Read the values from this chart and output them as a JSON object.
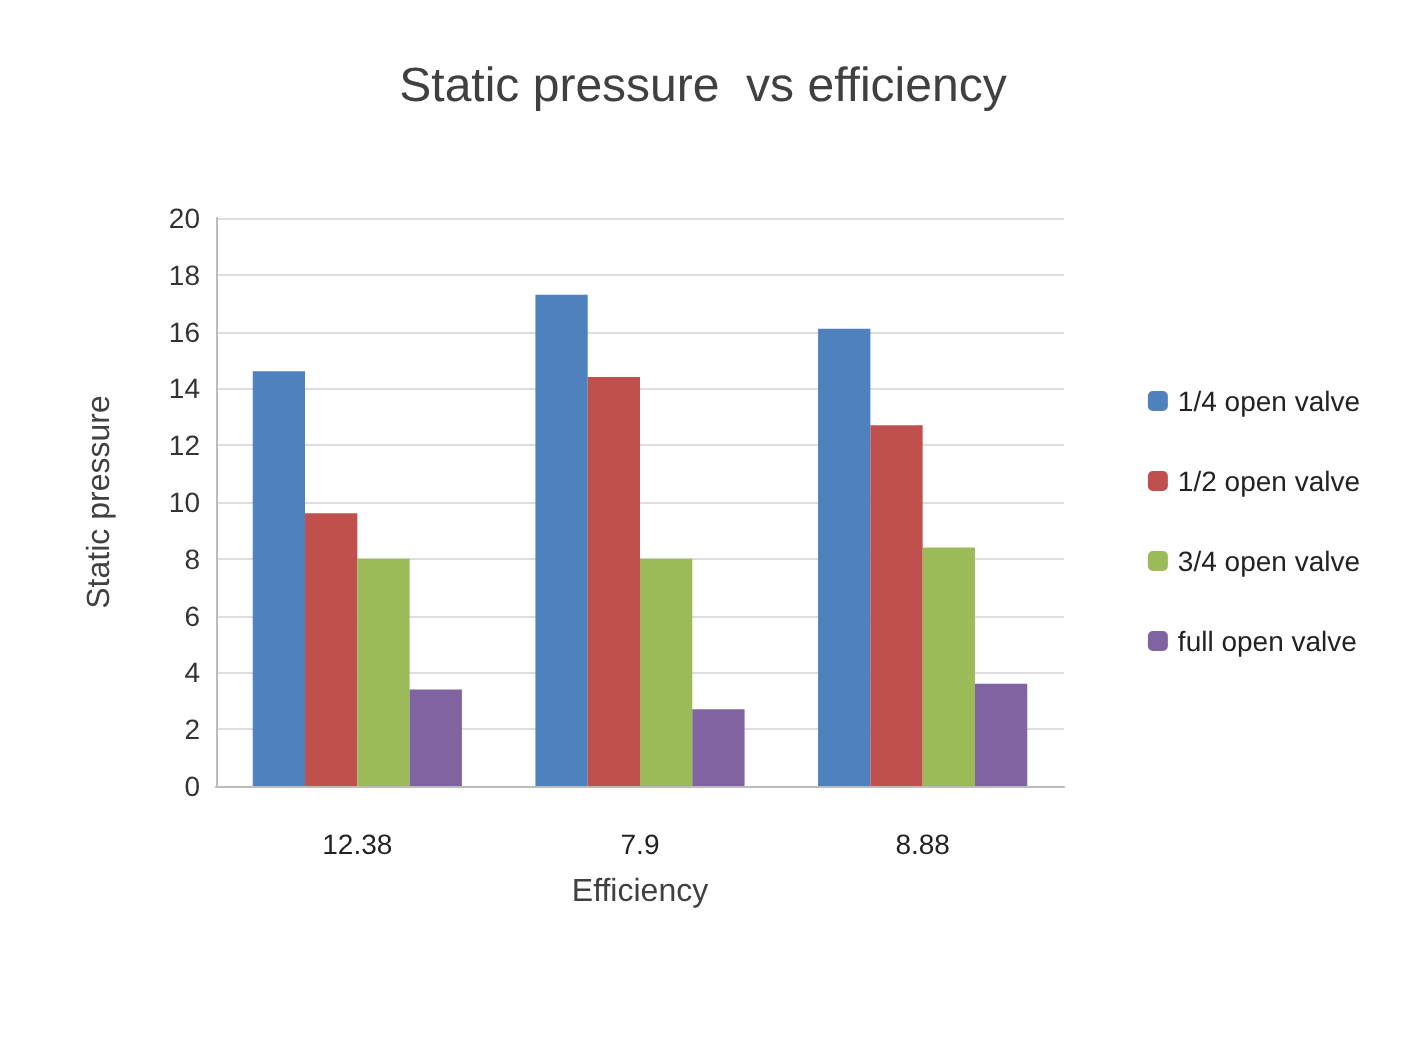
{
  "chart_data": {
    "type": "bar",
    "title": "Static pressure  vs efficiency",
    "xlabel": "Efficiency",
    "ylabel": "Static pressure",
    "categories": [
      "12.38",
      "7.9",
      "8.88"
    ],
    "series": [
      {
        "name": "1/4 open valve",
        "color": "#4f81bd",
        "values": [
          14.6,
          17.3,
          16.1
        ]
      },
      {
        "name": "1/2 open valve",
        "color": "#c0504d",
        "values": [
          9.6,
          14.4,
          12.7
        ]
      },
      {
        "name": "3/4 open valve",
        "color": "#9bbb59",
        "values": [
          8.0,
          8.0,
          8.4
        ]
      },
      {
        "name": "full open valve",
        "color": "#8064a2",
        "values": [
          3.4,
          2.7,
          3.6
        ]
      }
    ],
    "ylim": [
      0,
      20
    ],
    "yticks": [
      0,
      2,
      4,
      6,
      8,
      10,
      12,
      14,
      16,
      18,
      20
    ],
    "grid": "y",
    "legend": "right"
  }
}
